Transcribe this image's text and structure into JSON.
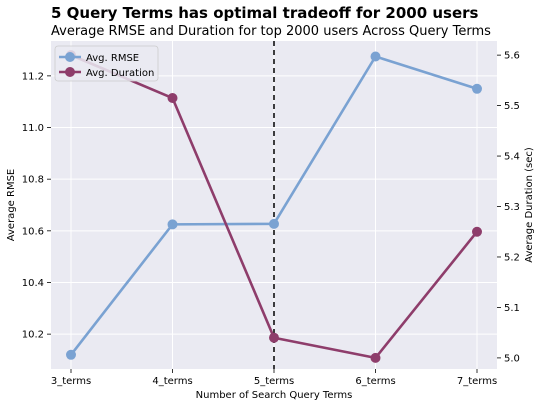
{
  "chart_data": {
    "type": "line",
    "suptitle": "5 Query Terms has optimal tradeoff for 2000 users",
    "title": "Average RMSE and Duration for top 2000 users Across Query Terms",
    "xlabel": "Number of Search Query Terms",
    "ylabel_left": "Average RMSE",
    "ylabel_right": "Average Duration (sec)",
    "categories": [
      "3_terms",
      "4_terms",
      "5_terms",
      "6_terms",
      "7_terms"
    ],
    "series": [
      {
        "name": "Avg. RMSE",
        "axis": "left",
        "color": "#7aa2d2",
        "values": [
          10.12,
          10.625,
          10.627,
          11.275,
          11.15
        ]
      },
      {
        "name": "Avg. Duration",
        "axis": "right",
        "color": "#8e3d6b",
        "values": [
          5.6,
          5.515,
          5.04,
          5.0,
          5.25
        ]
      }
    ],
    "ylim_left": [
      10.065,
      11.335
    ],
    "ylim_right": [
      4.978,
      5.628
    ],
    "yticks_left": [
      "10.2",
      "10.4",
      "10.6",
      "10.8",
      "11.0",
      "11.2"
    ],
    "yticks_right": [
      "5.0",
      "5.1",
      "5.2",
      "5.3",
      "5.4",
      "5.5",
      "5.6"
    ],
    "vline_category": "5_terms",
    "grid": true,
    "legend_position": "upper-left"
  }
}
